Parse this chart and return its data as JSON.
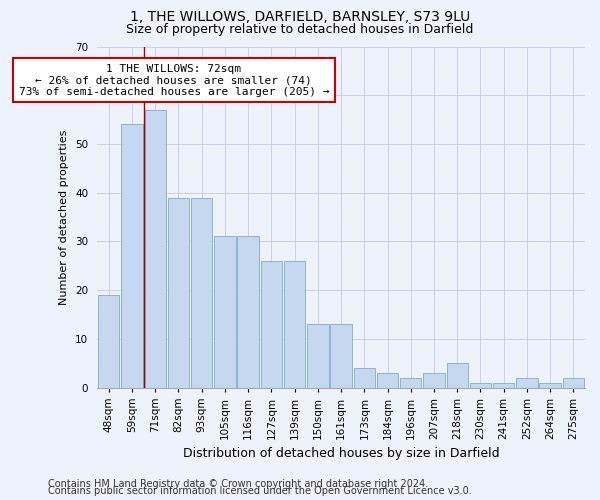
{
  "title": "1, THE WILLOWS, DARFIELD, BARNSLEY, S73 9LU",
  "subtitle": "Size of property relative to detached houses in Darfield",
  "xlabel": "Distribution of detached houses by size in Darfield",
  "ylabel": "Number of detached properties",
  "footer_line1": "Contains HM Land Registry data © Crown copyright and database right 2024.",
  "footer_line2": "Contains public sector information licensed under the Open Government Licence v3.0.",
  "categories": [
    "48sqm",
    "59sqm",
    "71sqm",
    "82sqm",
    "93sqm",
    "105sqm",
    "116sqm",
    "127sqm",
    "139sqm",
    "150sqm",
    "161sqm",
    "173sqm",
    "184sqm",
    "196sqm",
    "207sqm",
    "218sqm",
    "230sqm",
    "241sqm",
    "252sqm",
    "264sqm",
    "275sqm"
  ],
  "values": [
    19,
    54,
    57,
    39,
    39,
    31,
    31,
    26,
    26,
    13,
    13,
    4,
    3,
    2,
    3,
    5,
    1,
    1,
    2,
    1,
    2
  ],
  "bar_color": "#c5d8f0",
  "bar_edge_color": "#7aaed4",
  "background_color": "#eef2fb",
  "grid_color": "#c8cfe8",
  "annotation_text": "1 THE WILLOWS: 72sqm\n← 26% of detached houses are smaller (74)\n73% of semi-detached houses are larger (205) →",
  "vline_x_index": 2,
  "vline_color": "#aa0000",
  "annotation_box_color": "#ffffff",
  "annotation_box_edge": "#cc0000",
  "ylim": [
    0,
    70
  ],
  "yticks": [
    0,
    10,
    20,
    30,
    40,
    50,
    60,
    70
  ],
  "title_fontsize": 10,
  "subtitle_fontsize": 9,
  "xlabel_fontsize": 9,
  "ylabel_fontsize": 8,
  "tick_fontsize": 7.5,
  "annotation_fontsize": 8,
  "footer_fontsize": 7
}
